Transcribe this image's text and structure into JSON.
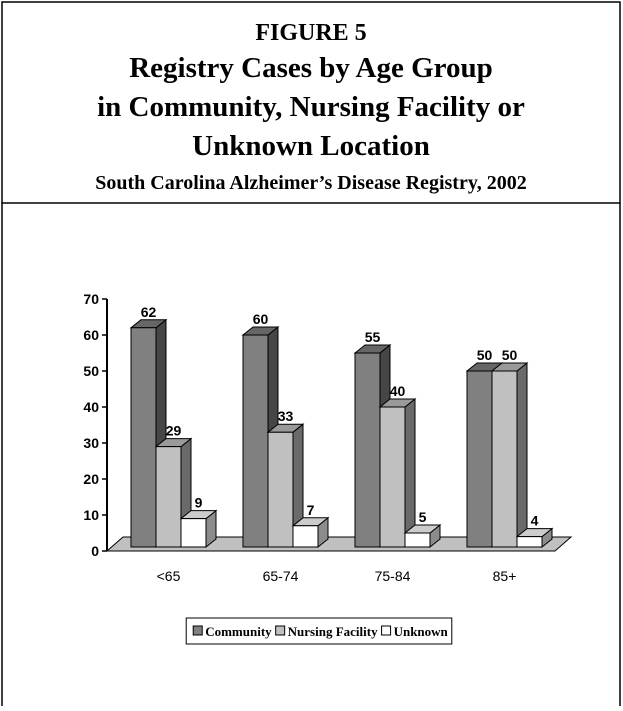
{
  "chart_data": {
    "type": "bar3d",
    "figure_label": "FIGURE 5",
    "title": [
      "Registry Cases by Age Group",
      "in Community, Nursing Facility or",
      "Unknown Location"
    ],
    "subtitle": "South Carolina Alzheimer’s Disease Registry, 2002",
    "categories": [
      "<65",
      "65-74",
      "75-84",
      "85+"
    ],
    "series": [
      {
        "name": "Community",
        "color": "#808080",
        "values": [
          62,
          60,
          55,
          50
        ]
      },
      {
        "name": "Nursing Facility",
        "color": "#c0c0c0",
        "values": [
          29,
          33,
          40,
          50
        ]
      },
      {
        "name": "Unknown",
        "color": "#ffffff",
        "values": [
          9,
          7,
          5,
          4
        ]
      }
    ],
    "ylim": [
      0,
      70
    ],
    "yticks": [
      0,
      10,
      20,
      30,
      40,
      50,
      60,
      70
    ],
    "legend": "bottom"
  }
}
